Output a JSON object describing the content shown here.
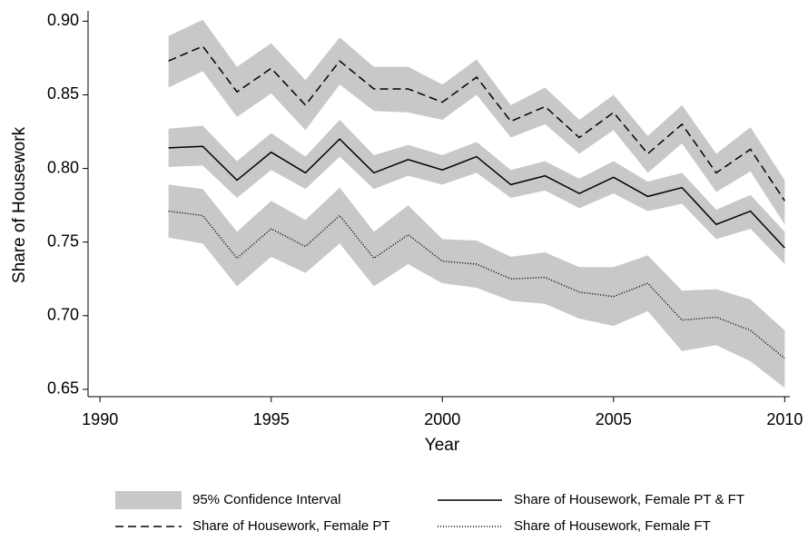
{
  "chart_data": {
    "type": "line",
    "xlabel": "Year",
    "ylabel": "Share of Housework",
    "x": [
      1992,
      1993,
      1994,
      1995,
      1996,
      1997,
      1998,
      1999,
      2000,
      2001,
      2002,
      2003,
      2004,
      2005,
      2006,
      2007,
      2008,
      2009,
      2010
    ],
    "xlim": [
      1989.65,
      2010.15
    ],
    "xticks": [
      1990,
      1995,
      2000,
      2005,
      2010
    ],
    "ylim": [
      0.645,
      0.907
    ],
    "yticks": [
      0.65,
      {
        "value": 0.7,
        "label": "0.70"
      },
      0.75,
      {
        "value": 0.8,
        "label": "0.80"
      },
      0.85,
      {
        "value": 0.9,
        "label": "0.90"
      }
    ],
    "band_name": "95% Confidence Interval",
    "band_color": "#c8c8c8",
    "legend": "bottom",
    "series": [
      {
        "name": "Share of Housework, Female PT & FT",
        "color": "#000000",
        "dash": "solid",
        "values": [
          0.814,
          0.815,
          0.792,
          0.811,
          0.797,
          0.82,
          0.797,
          0.806,
          0.799,
          0.808,
          0.789,
          0.795,
          0.783,
          0.794,
          0.781,
          0.787,
          0.762,
          0.771,
          0.746
        ],
        "upper": [
          0.827,
          0.829,
          0.805,
          0.824,
          0.808,
          0.833,
          0.809,
          0.816,
          0.809,
          0.818,
          0.799,
          0.805,
          0.793,
          0.805,
          0.791,
          0.797,
          0.772,
          0.782,
          0.757
        ],
        "lower": [
          0.801,
          0.802,
          0.78,
          0.799,
          0.786,
          0.808,
          0.786,
          0.795,
          0.789,
          0.797,
          0.78,
          0.785,
          0.773,
          0.783,
          0.771,
          0.776,
          0.752,
          0.759,
          0.735
        ]
      },
      {
        "name": "Share of Housework, Female PT",
        "color": "#000000",
        "dash": "dashed",
        "values": [
          0.873,
          0.883,
          0.852,
          0.868,
          0.843,
          0.873,
          0.854,
          0.854,
          0.845,
          0.862,
          0.832,
          0.842,
          0.821,
          0.838,
          0.81,
          0.83,
          0.797,
          0.813,
          0.778
        ],
        "upper": [
          0.89,
          0.901,
          0.869,
          0.885,
          0.86,
          0.889,
          0.869,
          0.869,
          0.857,
          0.874,
          0.843,
          0.855,
          0.833,
          0.85,
          0.822,
          0.843,
          0.81,
          0.828,
          0.792
        ],
        "lower": [
          0.855,
          0.866,
          0.835,
          0.851,
          0.826,
          0.857,
          0.839,
          0.838,
          0.833,
          0.85,
          0.821,
          0.83,
          0.81,
          0.826,
          0.797,
          0.817,
          0.784,
          0.798,
          0.762
        ]
      },
      {
        "name": "Share of Housework, Female FT",
        "color": "#000000",
        "dash": "dotted",
        "values": [
          0.771,
          0.768,
          0.739,
          0.759,
          0.747,
          0.768,
          0.739,
          0.755,
          0.737,
          0.735,
          0.725,
          0.726,
          0.716,
          0.713,
          0.722,
          0.697,
          0.699,
          0.69,
          0.671
        ],
        "upper": [
          0.789,
          0.786,
          0.757,
          0.778,
          0.765,
          0.787,
          0.757,
          0.775,
          0.752,
          0.751,
          0.74,
          0.743,
          0.733,
          0.733,
          0.741,
          0.717,
          0.718,
          0.711,
          0.69
        ],
        "lower": [
          0.753,
          0.749,
          0.72,
          0.74,
          0.729,
          0.749,
          0.72,
          0.735,
          0.722,
          0.719,
          0.71,
          0.708,
          0.698,
          0.693,
          0.703,
          0.676,
          0.68,
          0.669,
          0.651
        ]
      }
    ]
  }
}
